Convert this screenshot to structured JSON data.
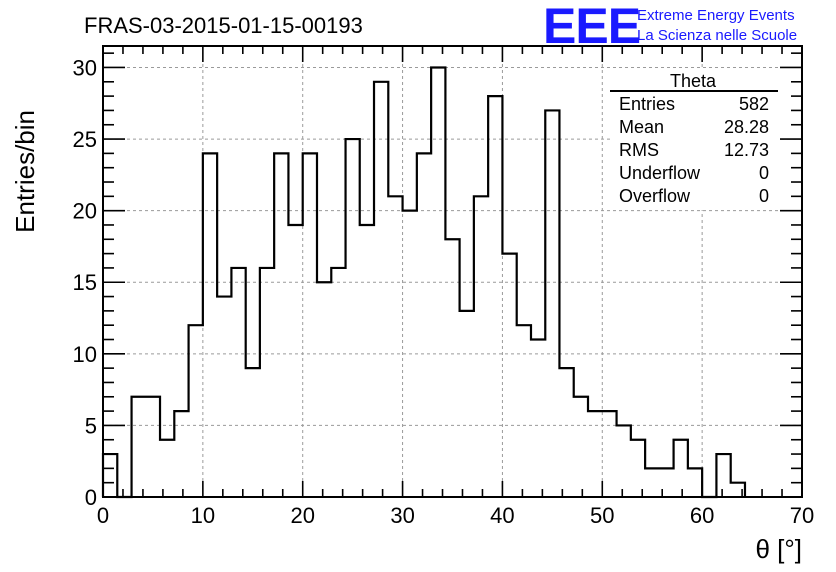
{
  "chart_data": {
    "type": "bar",
    "subtype": "step-histogram",
    "title": "FRAS-03-2015-01-15-00193",
    "xlabel": "θ [°]",
    "ylabel": "Entries/bin",
    "xlim": [
      0,
      70
    ],
    "ylim": [
      0,
      31.5
    ],
    "x_ticks": [
      0,
      10,
      20,
      30,
      40,
      50,
      60,
      70
    ],
    "y_ticks": [
      0,
      5,
      10,
      15,
      20,
      25,
      30
    ],
    "grid": true,
    "bin_edges": [
      0,
      1.43,
      2.86,
      4.29,
      5.71,
      7.14,
      8.57,
      10.0,
      11.43,
      12.86,
      14.29,
      15.71,
      17.14,
      18.57,
      20.0,
      21.43,
      22.86,
      24.29,
      25.71,
      27.14,
      28.57,
      30.0,
      31.43,
      32.86,
      34.29,
      35.71,
      37.14,
      38.57,
      40.0,
      41.43,
      42.86,
      44.29,
      45.71,
      47.14,
      48.57,
      50.0,
      51.43,
      52.86,
      54.29,
      55.71,
      57.14,
      58.57,
      60.0,
      61.43,
      62.86,
      64.29
    ],
    "values": [
      3,
      0,
      7,
      7,
      4,
      6,
      12,
      24,
      14,
      16,
      9,
      16,
      24,
      19,
      24,
      15,
      16,
      25,
      19,
      29,
      21,
      20,
      24,
      30,
      18,
      13,
      21,
      28,
      17,
      12,
      11,
      27,
      9,
      7,
      6,
      6,
      5,
      4,
      2,
      2,
      4,
      2,
      0,
      3,
      1
    ],
    "stats": {
      "name": "Theta",
      "rows": [
        {
          "label": "Entries",
          "value": "582"
        },
        {
          "label": "Mean",
          "value": "28.28"
        },
        {
          "label": "RMS",
          "value": "12.73"
        },
        {
          "label": "Underflow",
          "value": "0"
        },
        {
          "label": "Overflow",
          "value": "0"
        }
      ]
    },
    "logo": {
      "mark": "EEE",
      "line1": "Extreme Energy Events",
      "line2": "La Scienza nelle Scuole"
    },
    "colors": {
      "line": "#000000",
      "grid": "#9a9a9a",
      "logo": "#1a1aff"
    }
  }
}
